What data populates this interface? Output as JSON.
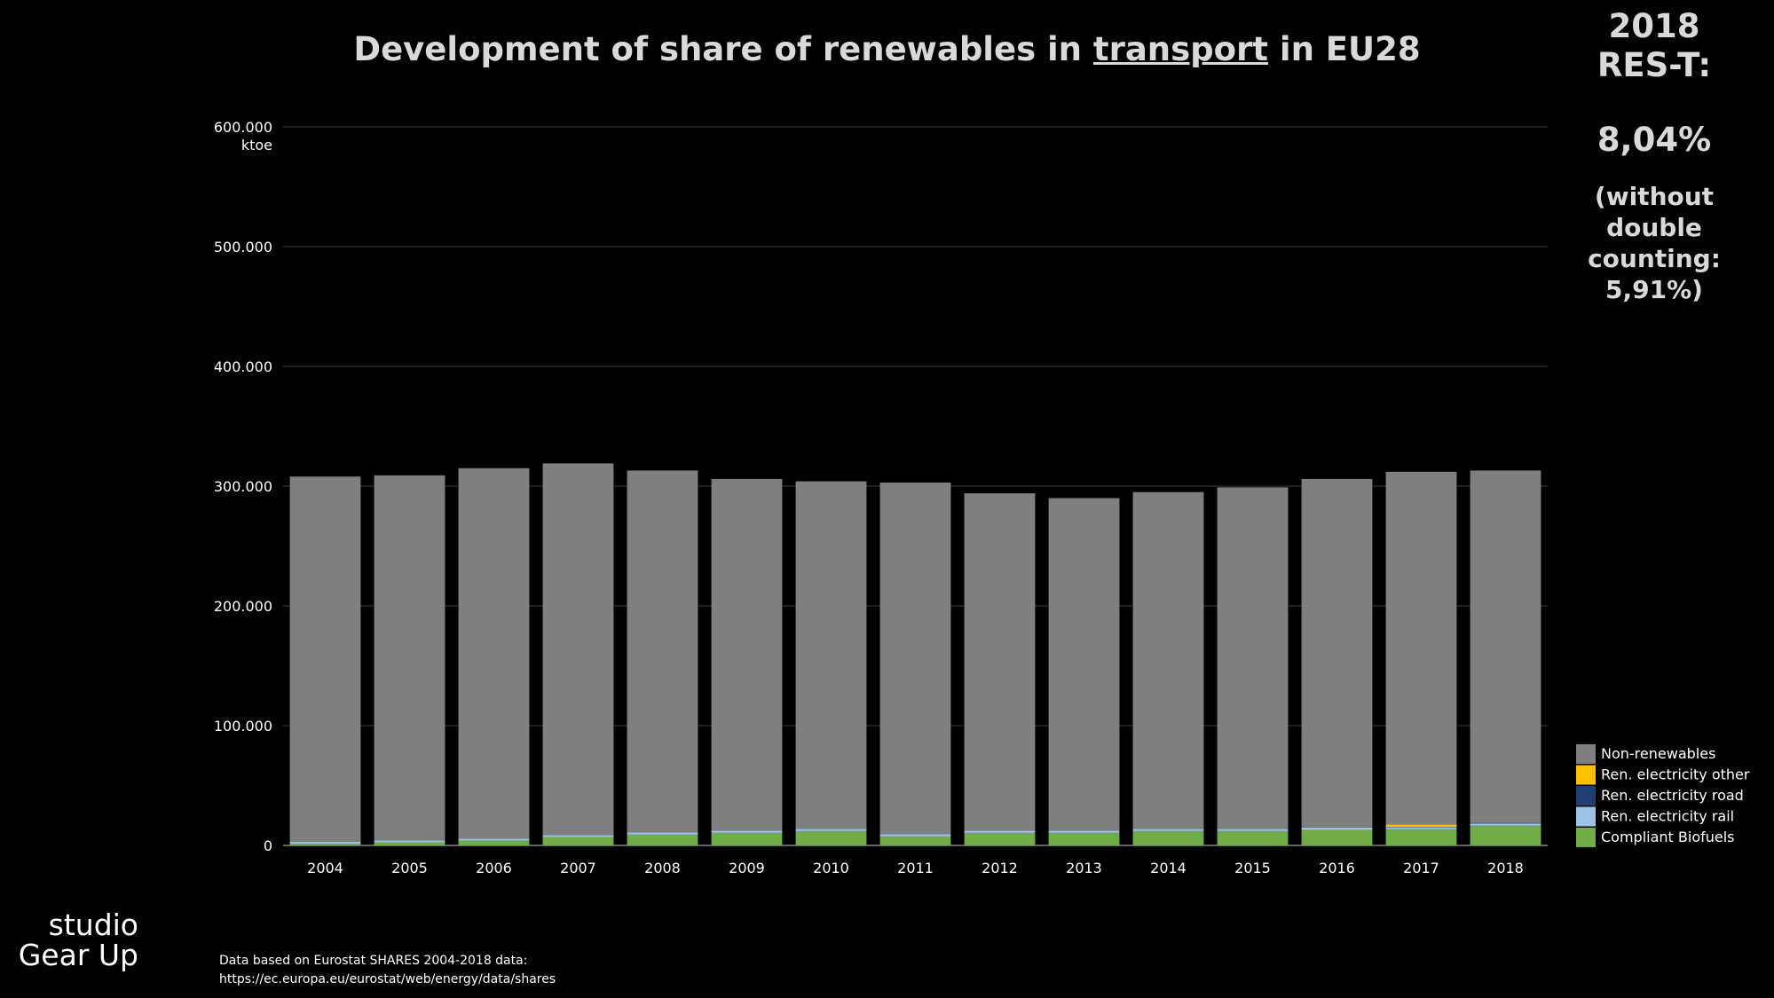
{
  "header": {
    "title_before": "Development of share of renewables in ",
    "title_underlined": "transport",
    "title_after": " in EU28"
  },
  "sidebar": {
    "line1": "2018",
    "line2": "RES-T:",
    "percent": "8,04%",
    "note1": "(without",
    "note2": "double",
    "note3": "counting:",
    "note4": "5,91%)"
  },
  "footer": {
    "logo_line1": "studio",
    "logo_line2": "Gear Up",
    "source_line1": "Data  based on Eurostat SHARES 2004-2018 data:",
    "source_line2": "https://ec.europa.eu/eurostat/web/energy/data/shares"
  },
  "chart_data": {
    "type": "bar",
    "stacked": true,
    "title": "Development of share of renewables in transport in EU28",
    "ylabel": "ktoe",
    "ylim": [
      0,
      600000
    ],
    "yticks": [
      0,
      100000,
      200000,
      300000,
      400000,
      500000,
      600000
    ],
    "ytick_labels": [
      "0",
      "100.000",
      "200.000",
      "300.000",
      "400.000",
      "500.000",
      "600.000"
    ],
    "grid": true,
    "legend_position": "bottom-right",
    "categories": [
      "2004",
      "2005",
      "2006",
      "2007",
      "2008",
      "2009",
      "2010",
      "2011",
      "2012",
      "2013",
      "2014",
      "2015",
      "2016",
      "2017",
      "2018"
    ],
    "series": [
      {
        "name": "Compliant Biofuels",
        "color": "#70ad47",
        "values": [
          1500,
          2500,
          4000,
          7000,
          9000,
          10500,
          12000,
          7500,
          10500,
          10500,
          12000,
          12000,
          13000,
          13500,
          16500
        ]
      },
      {
        "name": "Ren. electricity rail",
        "color": "#9dc3e6",
        "values": [
          1500,
          1600,
          1700,
          1700,
          1800,
          1800,
          1800,
          1800,
          1800,
          1800,
          1800,
          1800,
          1900,
          1900,
          2000
        ]
      },
      {
        "name": "Ren. electricity road",
        "color": "#1f3f74",
        "values": [
          0,
          0,
          0,
          0,
          0,
          0,
          0,
          0,
          0,
          0,
          0,
          0,
          0,
          100,
          100
        ]
      },
      {
        "name": "Ren. electricity other",
        "color": "#ffc000",
        "values": [
          0,
          0,
          0,
          0,
          0,
          0,
          0,
          0,
          0,
          0,
          0,
          0,
          0,
          2000,
          0
        ]
      },
      {
        "name": "Non-renewables",
        "color": "#7f7f7f",
        "values": [
          305000,
          304900,
          309300,
          310300,
          302200,
          293700,
          290200,
          293700,
          281700,
          277700,
          281200,
          285200,
          291100,
          294500,
          294400
        ]
      }
    ]
  }
}
